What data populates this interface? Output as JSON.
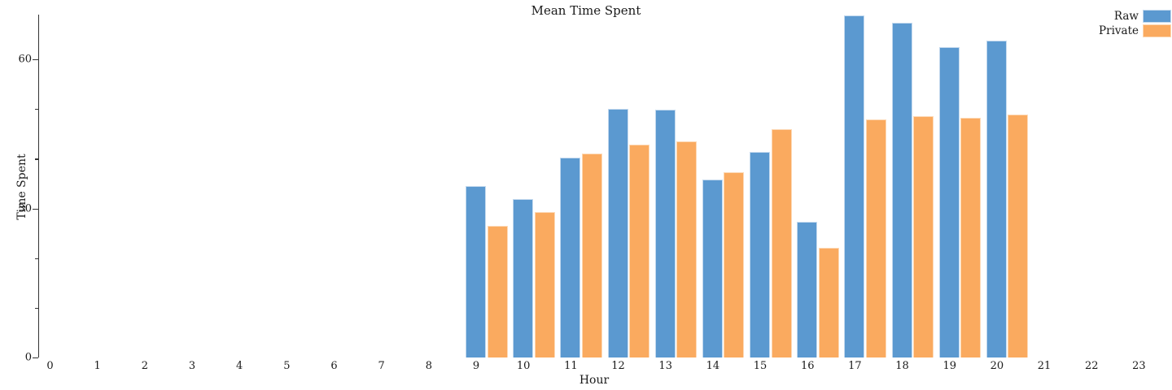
{
  "title": "Mean Time Spent",
  "legend": {
    "items": [
      {
        "label": "Raw",
        "color": "#5b99d0",
        "edge_color": "#c3d9ee"
      },
      {
        "label": "Private",
        "color": "#faaa5f",
        "edge_color": "#fdd8b4"
      }
    ],
    "position": "upper right"
  },
  "chart_data": {
    "type": "bar",
    "title": "Mean Time Spent",
    "xlabel": "Hour",
    "ylabel": "Time Spent",
    "x_ticks": [
      "0",
      "1",
      "2",
      "3",
      "4",
      "5",
      "6",
      "7",
      "8",
      "9",
      "10",
      "11",
      "12",
      "13",
      "14",
      "15",
      "16",
      "17",
      "18",
      "19",
      "20",
      "21",
      "22",
      "23"
    ],
    "xlim": [
      -0.5,
      23.7
    ],
    "ylim": [
      0,
      69
    ],
    "y_ticks_major": [
      0,
      30,
      60
    ],
    "y_ticks_minor": [
      10,
      20,
      40,
      50
    ],
    "grid": false,
    "categories": [
      9,
      10,
      11,
      12,
      13,
      14,
      15,
      16,
      17,
      18,
      19,
      20
    ],
    "series": [
      {
        "name": "Raw",
        "color": "#5b99d0",
        "edge_color": "#c3d9ee",
        "values": [
          34.5,
          31.8,
          40.2,
          50.1,
          49.9,
          35.8,
          41.4,
          27.3,
          68.8,
          67.3,
          62.5,
          63.8
        ]
      },
      {
        "name": "Private",
        "color": "#faaa5f",
        "edge_color": "#fdd8b4",
        "values": [
          26.5,
          29.3,
          41.0,
          42.8,
          43.5,
          37.2,
          46.0,
          22.0,
          47.9,
          48.6,
          48.2,
          48.9
        ]
      }
    ],
    "legend_position": "upper right"
  }
}
